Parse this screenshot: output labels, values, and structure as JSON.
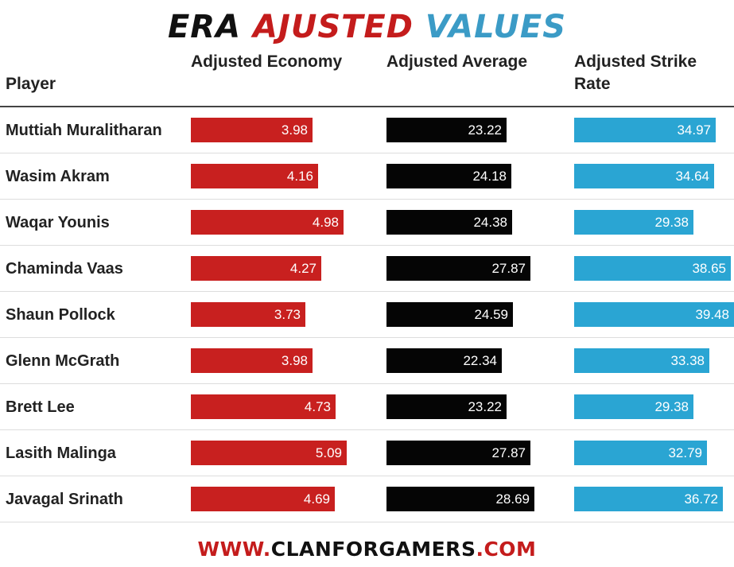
{
  "title": {
    "part1": "ERA",
    "part2": "AJUSTED",
    "part3": "VALUES"
  },
  "colors": {
    "economy": "#c8201f",
    "average": "#050505",
    "strike_rate": "#2aa5d3",
    "title_red": "#c41c1c",
    "title_blue": "#3b9bc6"
  },
  "headers": {
    "player": "Player",
    "economy": "Adjusted Economy",
    "average": "Adjusted Average",
    "strike_rate": "Adjusted Strike Rate"
  },
  "footer": {
    "part1": "WWW.",
    "part2": "CLANFORGAMERS",
    "part3": ".COM"
  },
  "chart_data": {
    "type": "table",
    "title": "ERA AJUSTED VALUES",
    "columns": [
      "Player",
      "Adjusted Economy",
      "Adjusted Average",
      "Adjusted Strike Rate"
    ],
    "rows": [
      {
        "player": "Muttiah Muralitharan",
        "economy": "3.98",
        "average": "23.22",
        "strike_rate": "34.97"
      },
      {
        "player": "Wasim Akram",
        "economy": "4.16",
        "average": "24.18",
        "strike_rate": "34.64"
      },
      {
        "player": "Waqar Younis",
        "economy": "4.98",
        "average": "24.38",
        "strike_rate": "29.38"
      },
      {
        "player": "Chaminda Vaas",
        "economy": "4.27",
        "average": "27.87",
        "strike_rate": "38.65"
      },
      {
        "player": "Shaun Pollock",
        "economy": "3.73",
        "average": "24.59",
        "strike_rate": "39.48"
      },
      {
        "player": "Glenn McGrath",
        "economy": "3.98",
        "average": "22.34",
        "strike_rate": "33.38"
      },
      {
        "player": "Brett Lee",
        "economy": "4.73",
        "average": "23.22",
        "strike_rate": "29.38"
      },
      {
        "player": "Lasith Malinga",
        "economy": "5.09",
        "average": "27.87",
        "strike_rate": "32.79"
      },
      {
        "player": "Javagal Srinath",
        "economy": "4.69",
        "average": "28.69",
        "strike_rate": "36.72"
      }
    ]
  }
}
